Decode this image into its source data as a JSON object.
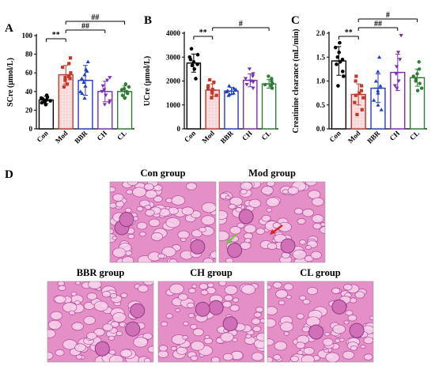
{
  "panel_letters": {
    "a": "A",
    "b": "B",
    "c": "C",
    "d": "D"
  },
  "colors": {
    "Con": "#000000",
    "Mod": "#c0392b",
    "BBR": "#1f3fbf",
    "CH": "#7a2fb0",
    "CL": "#2e7d32",
    "Mod_fill": "#f6d8d8",
    "sig_line": "#000000",
    "tissue_base": "#e58fc7",
    "tissue_dark": "#b04a9a",
    "tissue_light": "#f8d2ec",
    "arrow_red": "#e02020",
    "arrow_green": "#7bbf4a"
  },
  "chart_data": [
    {
      "panel": "A",
      "type": "bar",
      "categories": [
        "Con",
        "Mod",
        "BBR",
        "CH",
        "CL"
      ],
      "values": [
        31,
        58,
        52,
        40,
        40
      ],
      "errors": [
        4,
        10,
        16,
        11,
        6
      ],
      "points": [
        [
          33,
          30,
          28,
          36,
          30,
          26,
          34,
          32,
          29,
          31
        ],
        [
          76,
          70,
          66,
          60,
          56,
          55,
          54,
          52,
          48,
          45
        ],
        [
          72,
          64,
          62,
          58,
          54,
          50,
          46,
          40,
          38,
          33
        ],
        [
          55,
          52,
          46,
          42,
          40,
          36,
          30,
          28,
          26
        ],
        [
          48,
          45,
          43,
          42,
          40,
          38,
          36,
          33
        ]
      ],
      "ylabel": "SCre (μmol/L)",
      "ylim": [
        0,
        100
      ],
      "yticks": [
        0,
        20,
        40,
        60,
        80,
        100
      ],
      "significance": [
        {
          "from": "Con",
          "to": "Mod",
          "label": "**",
          "level": 0
        },
        {
          "from": "Mod",
          "to": "CH",
          "label": "##",
          "level": 1
        },
        {
          "from": "Mod",
          "to": "CL",
          "label": "##",
          "level": 2
        }
      ]
    },
    {
      "panel": "B",
      "type": "bar",
      "categories": [
        "Con",
        "Mod",
        "BBR",
        "CH",
        "CL"
      ],
      "values": [
        2750,
        1620,
        1580,
        2030,
        1880
      ],
      "errors": [
        380,
        260,
        150,
        270,
        180
      ],
      "points": [
        [
          3350,
          3100,
          3000,
          2900,
          2800,
          2700,
          2650,
          2500,
          2100
        ],
        [
          2050,
          1950,
          1800,
          1700,
          1650,
          1550,
          1500,
          1400,
          1300
        ],
        [
          1800,
          1700,
          1650,
          1600,
          1550,
          1500,
          1450,
          1400
        ],
        [
          2500,
          2300,
          2200,
          2100,
          2000,
          1950,
          1850,
          1700
        ],
        [
          2200,
          2100,
          2000,
          1900,
          1850,
          1800,
          1700
        ]
      ],
      "ylabel": "UCre (μmol/L)",
      "ylim": [
        0,
        4000
      ],
      "yticks": [
        0,
        1000,
        2000,
        3000,
        4000
      ],
      "significance": [
        {
          "from": "Con",
          "to": "Mod",
          "label": "**",
          "level": 0
        },
        {
          "from": "Mod",
          "to": "CL",
          "label": "#",
          "level": 1
        }
      ]
    },
    {
      "panel": "C",
      "type": "bar",
      "categories": [
        "Con",
        "Mod",
        "BBR",
        "CH",
        "CL"
      ],
      "values": [
        1.42,
        0.72,
        0.85,
        1.18,
        1.07
      ],
      "errors": [
        0.3,
        0.22,
        0.3,
        0.38,
        0.18
      ],
      "points": [
        [
          1.8,
          1.7,
          1.6,
          1.5,
          1.45,
          1.4,
          1.35,
          1.2,
          1.1,
          0.9
        ],
        [
          1.1,
          1.0,
          0.9,
          0.8,
          0.75,
          0.7,
          0.65,
          0.55,
          0.4,
          0.3
        ],
        [
          1.5,
          1.2,
          1.0,
          0.9,
          0.8,
          0.75,
          0.6,
          0.5,
          0.4
        ],
        [
          1.95,
          1.6,
          1.45,
          1.3,
          1.15,
          1.0,
          0.9,
          0.85
        ],
        [
          1.4,
          1.25,
          1.15,
          1.1,
          1.05,
          1.0,
          0.95,
          0.85,
          0.8
        ]
      ],
      "ylabel": "Creatinine clearance (mL/min)",
      "ylim": [
        0,
        2.0
      ],
      "yticks": [
        0.0,
        0.5,
        1.0,
        1.5,
        2.0
      ],
      "significance": [
        {
          "from": "Con",
          "to": "Mod",
          "label": "**",
          "level": 0
        },
        {
          "from": "Mod",
          "to": "CH",
          "label": "##",
          "level": 1
        },
        {
          "from": "Mod",
          "to": "CL",
          "label": "#",
          "level": 2
        }
      ]
    }
  ],
  "histology": [
    {
      "caption": "Con group"
    },
    {
      "caption": "Mod group"
    },
    {
      "caption": "BBR group"
    },
    {
      "caption": "CH group"
    },
    {
      "caption": "CL group"
    }
  ]
}
